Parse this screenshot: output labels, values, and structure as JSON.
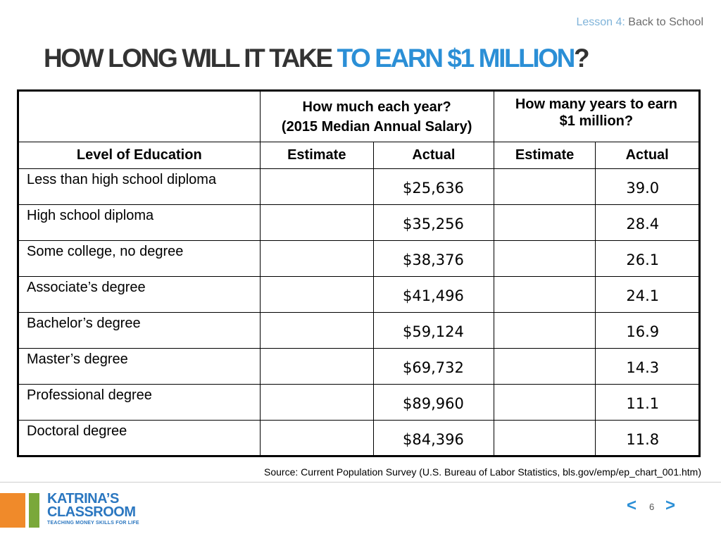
{
  "header": {
    "lesson_label": "Lesson 4",
    "lesson_sep": ":",
    "lesson_title": " Back to School",
    "title_dark": "HOW LONG WILL IT TAKE ",
    "title_blue": "TO EARN $1 MILLION",
    "title_end": "?"
  },
  "table": {
    "group_headers": {
      "salary_line1": "How much each year?",
      "salary_line2": "(2015 Median Annual Salary)",
      "years_line1": "How many years to earn",
      "years_line2": "$1 million?"
    },
    "columns": [
      "Level of Education",
      "Estimate",
      "Actual",
      "Estimate",
      "Actual"
    ],
    "rows": [
      {
        "level": "Less than high school diploma",
        "salary_estimate": "",
        "salary_actual": "$25,636",
        "years_estimate": "",
        "years_actual": "39.0"
      },
      {
        "level": "High school diploma",
        "salary_estimate": "",
        "salary_actual": "$35,256",
        "years_estimate": "",
        "years_actual": "28.4"
      },
      {
        "level": "Some college, no degree",
        "salary_estimate": "",
        "salary_actual": "$38,376",
        "years_estimate": "",
        "years_actual": "26.1"
      },
      {
        "level": "Associate’s degree",
        "salary_estimate": "",
        "salary_actual": "$41,496",
        "years_estimate": "",
        "years_actual": "24.1"
      },
      {
        "level": "Bachelor’s degree",
        "salary_estimate": "",
        "salary_actual": "$59,124",
        "years_estimate": "",
        "years_actual": "16.9"
      },
      {
        "level": "Master’s degree",
        "salary_estimate": "",
        "salary_actual": "$69,732",
        "years_estimate": "",
        "years_actual": "14.3"
      },
      {
        "level": "Professional degree",
        "salary_estimate": "",
        "salary_actual": "$89,960",
        "years_estimate": "",
        "years_actual": "11.1"
      },
      {
        "level": "Doctoral degree",
        "salary_estimate": "",
        "salary_actual": "$84,396",
        "years_estimate": "",
        "years_actual": "11.8"
      }
    ]
  },
  "source": "Source: Current Population Survey (U.S. Bureau of Labor Statistics, bls.gov/emp/ep_chart_001.htm)",
  "footer": {
    "logo_line1": "KATRINA’S",
    "logo_line2": "CLASSROOM",
    "logo_tagline": "TEACHING MONEY SKILLS FOR LIFE",
    "prev_label": "<",
    "page_number": "6",
    "next_label": ">"
  },
  "colors": {
    "accent_blue": "#2b8fd6",
    "title_dark": "#333333",
    "logo_orange": "#f08a2a",
    "logo_green": "#7aa83a"
  },
  "icons": {
    "prev": "chevron-left-icon",
    "next": "chevron-right-icon"
  }
}
